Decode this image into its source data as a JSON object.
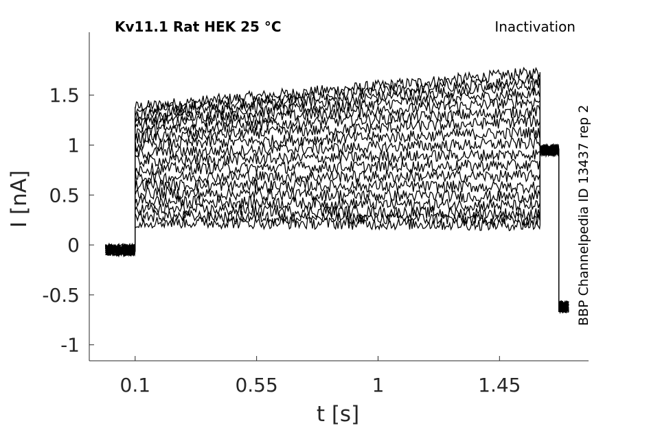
{
  "chart_data": {
    "type": "line",
    "title": "Kv11.1  Rat  HEK  25 °C",
    "protocol": "Inactivation",
    "side_label": "BBP Channelpedia ID 13437 rep 2",
    "xlabel": "t [s]",
    "ylabel": "I [nA]",
    "xlim": [
      -0.07,
      1.78
    ],
    "ylim": [
      -1.16,
      2.13
    ],
    "x_ticks": [
      0.1,
      0.55,
      1,
      1.45
    ],
    "x_tick_labels": [
      "0.1",
      "0.55",
      "1",
      "1.45"
    ],
    "y_ticks": [
      -1,
      -0.5,
      0,
      0.5,
      1,
      1.5
    ],
    "y_tick_labels": [
      "-1",
      "-0.5",
      "0",
      "0.5",
      "1",
      "1.5"
    ],
    "line_color": "#000000",
    "noise_amplitude": 0.06,
    "series": [
      {
        "x": [
          -0.01,
          0.1,
          0.1,
          1.6,
          1.6,
          1.67,
          1.67,
          1.71
        ],
        "y": [
          -0.05,
          -0.05,
          1.38,
          1.73,
          0.95,
          0.95,
          -0.62,
          -0.62
        ]
      },
      {
        "x": [
          -0.01,
          0.1,
          0.1,
          1.6,
          1.6,
          1.67,
          1.67,
          1.71
        ],
        "y": [
          -0.05,
          -0.05,
          1.34,
          1.66,
          0.95,
          0.95,
          -0.62,
          -0.62
        ]
      },
      {
        "x": [
          -0.01,
          0.1,
          0.1,
          1.6,
          1.6,
          1.67,
          1.67,
          1.71
        ],
        "y": [
          -0.05,
          -0.05,
          1.3,
          1.6,
          0.95,
          0.95,
          -0.62,
          -0.62
        ]
      },
      {
        "x": [
          -0.01,
          0.1,
          0.1,
          1.6,
          1.6,
          1.67,
          1.67,
          1.71
        ],
        "y": [
          -0.05,
          -0.05,
          1.25,
          1.52,
          0.95,
          0.95,
          -0.62,
          -0.62
        ]
      },
      {
        "x": [
          -0.01,
          0.1,
          0.1,
          1.6,
          1.6,
          1.67,
          1.67,
          1.71
        ],
        "y": [
          -0.05,
          -0.05,
          1.2,
          1.44,
          0.95,
          0.95,
          -0.62,
          -0.62
        ]
      },
      {
        "x": [
          -0.01,
          0.1,
          0.1,
          1.6,
          1.6,
          1.67,
          1.67,
          1.71
        ],
        "y": [
          -0.05,
          -0.05,
          1.14,
          1.34,
          0.95,
          0.95,
          -0.62,
          -0.62
        ]
      },
      {
        "x": [
          -0.01,
          0.1,
          0.1,
          1.6,
          1.6,
          1.67,
          1.67,
          1.71
        ],
        "y": [
          -0.05,
          -0.05,
          1.07,
          1.24,
          0.95,
          0.95,
          -0.62,
          -0.62
        ]
      },
      {
        "x": [
          -0.01,
          0.1,
          0.1,
          1.6,
          1.6,
          1.67,
          1.67,
          1.71
        ],
        "y": [
          -0.05,
          -0.05,
          1.0,
          1.13,
          0.95,
          0.95,
          -0.62,
          -0.62
        ]
      },
      {
        "x": [
          -0.01,
          0.1,
          0.1,
          1.6,
          1.6,
          1.67,
          1.67,
          1.71
        ],
        "y": [
          -0.05,
          -0.05,
          0.92,
          1.02,
          0.95,
          0.95,
          -0.62,
          -0.62
        ]
      },
      {
        "x": [
          -0.01,
          0.1,
          0.1,
          1.6,
          1.6,
          1.67,
          1.67,
          1.71
        ],
        "y": [
          -0.05,
          -0.05,
          0.84,
          0.91,
          0.95,
          0.95,
          -0.62,
          -0.62
        ]
      },
      {
        "x": [
          -0.01,
          0.1,
          0.1,
          1.6,
          1.6,
          1.67,
          1.67,
          1.71
        ],
        "y": [
          -0.05,
          -0.05,
          0.76,
          0.8,
          0.95,
          0.95,
          -0.62,
          -0.62
        ]
      },
      {
        "x": [
          -0.01,
          0.1,
          0.1,
          1.6,
          1.6,
          1.67,
          1.67,
          1.71
        ],
        "y": [
          -0.05,
          -0.05,
          0.68,
          0.69,
          0.95,
          0.95,
          -0.62,
          -0.62
        ]
      },
      {
        "x": [
          -0.01,
          0.1,
          0.1,
          1.6,
          1.6,
          1.67,
          1.67,
          1.71
        ],
        "y": [
          -0.05,
          -0.05,
          0.6,
          0.58,
          0.95,
          0.95,
          -0.62,
          -0.62
        ]
      },
      {
        "x": [
          -0.01,
          0.1,
          0.1,
          1.6,
          1.6,
          1.67,
          1.67,
          1.71
        ],
        "y": [
          -0.05,
          -0.05,
          0.52,
          0.48,
          0.95,
          0.95,
          -0.62,
          -0.62
        ]
      },
      {
        "x": [
          -0.01,
          0.1,
          0.1,
          1.6,
          1.6,
          1.67,
          1.67,
          1.71
        ],
        "y": [
          -0.05,
          -0.05,
          0.44,
          0.39,
          0.95,
          0.95,
          -0.62,
          -0.62
        ]
      },
      {
        "x": [
          -0.01,
          0.1,
          0.1,
          1.6,
          1.6,
          1.67,
          1.67,
          1.71
        ],
        "y": [
          -0.05,
          -0.05,
          0.36,
          0.31,
          0.95,
          0.95,
          -0.62,
          -0.62
        ]
      },
      {
        "x": [
          -0.01,
          0.1,
          0.1,
          1.6,
          1.6,
          1.67,
          1.67,
          1.71
        ],
        "y": [
          -0.05,
          -0.05,
          0.29,
          0.25,
          0.95,
          0.95,
          -0.62,
          -0.62
        ]
      },
      {
        "x": [
          -0.01,
          0.1,
          0.1,
          1.6,
          1.6,
          1.67,
          1.67,
          1.71
        ],
        "y": [
          -0.05,
          -0.05,
          0.23,
          0.2,
          0.95,
          0.95,
          -0.62,
          -0.62
        ]
      }
    ]
  }
}
